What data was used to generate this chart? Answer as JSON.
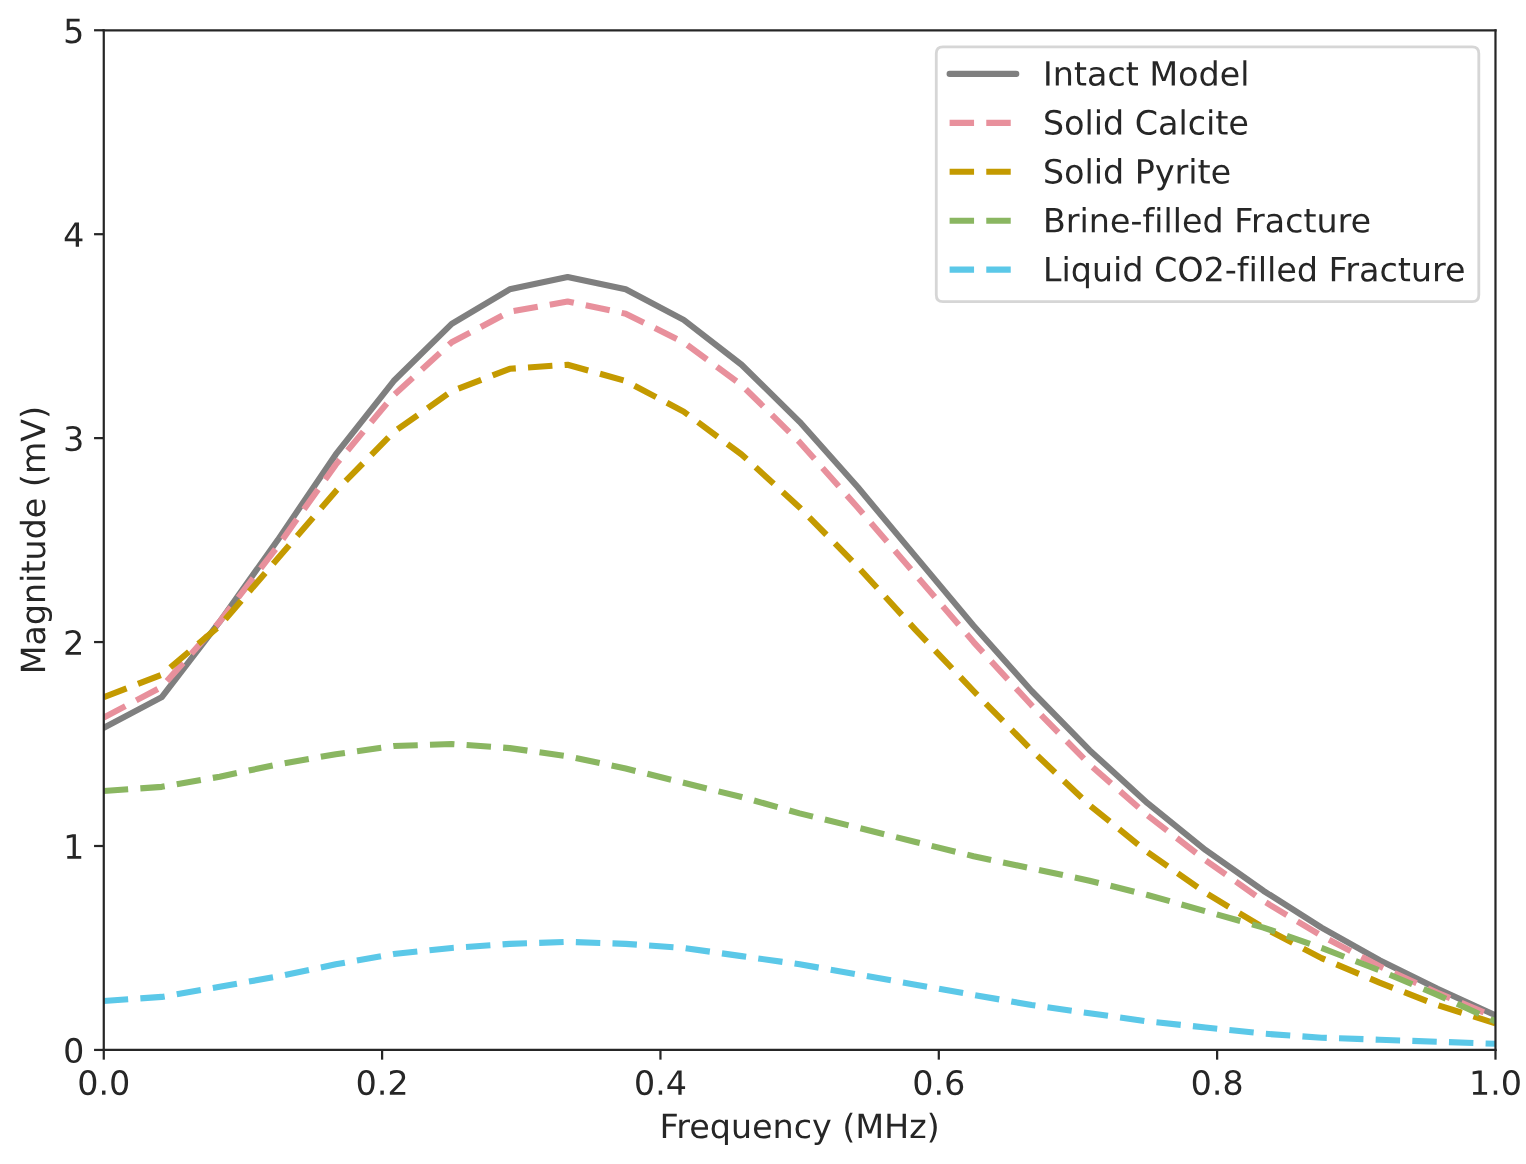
{
  "chart_data": {
    "type": "line",
    "xlabel": "Frequency (MHz)",
    "ylabel": "Magnitude (mV)",
    "x": [
      0,
      0.0417,
      0.0833,
      0.125,
      0.1667,
      0.2083,
      0.25,
      0.2917,
      0.3333,
      0.375,
      0.4167,
      0.4583,
      0.5,
      0.5417,
      0.5833,
      0.625,
      0.6667,
      0.7083,
      0.75,
      0.7917,
      0.8333,
      0.875,
      0.9167,
      0.9583,
      1.0
    ],
    "series": [
      {
        "name": "Intact Model",
        "color": "#7f7f7f",
        "line_style": "solid",
        "values": [
          1.58,
          1.73,
          2.1,
          2.5,
          2.92,
          3.28,
          3.56,
          3.73,
          3.79,
          3.73,
          3.58,
          3.36,
          3.08,
          2.76,
          2.42,
          2.08,
          1.76,
          1.47,
          1.21,
          0.98,
          0.78,
          0.6,
          0.44,
          0.3,
          0.17
        ]
      },
      {
        "name": "Solid Calcite",
        "color": "#e8909c",
        "line_style": "dashed",
        "values": [
          1.63,
          1.78,
          2.1,
          2.47,
          2.87,
          3.21,
          3.47,
          3.62,
          3.67,
          3.61,
          3.47,
          3.26,
          2.98,
          2.66,
          2.33,
          2.0,
          1.69,
          1.4,
          1.15,
          0.93,
          0.73,
          0.56,
          0.41,
          0.28,
          0.16
        ]
      },
      {
        "name": "Solid Pyrite",
        "color": "#c49a00",
        "line_style": "dashed",
        "values": [
          1.73,
          1.84,
          2.08,
          2.41,
          2.74,
          3.03,
          3.23,
          3.34,
          3.36,
          3.28,
          3.13,
          2.92,
          2.66,
          2.37,
          2.06,
          1.76,
          1.47,
          1.2,
          0.97,
          0.77,
          0.6,
          0.45,
          0.33,
          0.22,
          0.13
        ]
      },
      {
        "name": "Brine-filled Fracture",
        "color": "#8ab661",
        "line_style": "dashed",
        "values": [
          1.27,
          1.29,
          1.34,
          1.4,
          1.45,
          1.49,
          1.5,
          1.48,
          1.44,
          1.38,
          1.31,
          1.24,
          1.16,
          1.09,
          1.02,
          0.95,
          0.89,
          0.83,
          0.76,
          0.68,
          0.6,
          0.5,
          0.39,
          0.27,
          0.14
        ]
      },
      {
        "name": "Liquid CO2-filled Fracture",
        "color": "#5bc8e8",
        "line_style": "dashed",
        "values": [
          0.24,
          0.26,
          0.31,
          0.36,
          0.42,
          0.47,
          0.5,
          0.52,
          0.53,
          0.52,
          0.5,
          0.46,
          0.42,
          0.37,
          0.32,
          0.27,
          0.22,
          0.18,
          0.14,
          0.11,
          0.08,
          0.06,
          0.05,
          0.04,
          0.03
        ]
      }
    ],
    "xlim": [
      0,
      1.0
    ],
    "ylim": [
      0,
      5
    ],
    "xticks": [
      {
        "value": 0,
        "label": "0.0"
      },
      {
        "value": 0.2,
        "label": "0.2"
      },
      {
        "value": 0.4,
        "label": "0.4"
      },
      {
        "value": 0.6,
        "label": "0.6"
      },
      {
        "value": 0.8,
        "label": "0.8"
      },
      {
        "value": 1.0,
        "label": "1.0"
      }
    ],
    "yticks": [
      0,
      1,
      2,
      3,
      4,
      5
    ],
    "legend": "top right",
    "grid": false,
    "marker": "none"
  }
}
